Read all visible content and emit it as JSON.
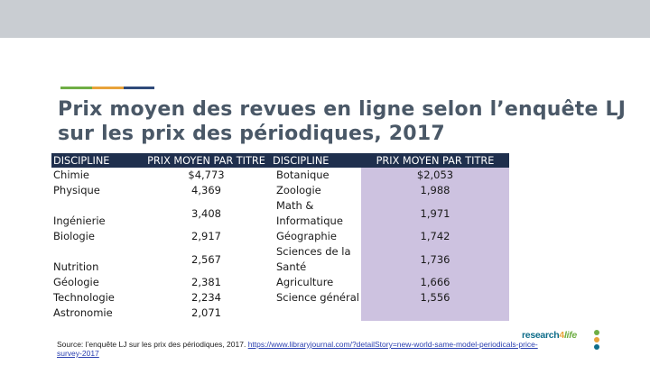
{
  "slide": {
    "title": "Prix moyen des revues en ligne selon l’enquête LJ sur les prix des périodiques, 2017",
    "colors": {
      "header_bg": "#1f2f4d",
      "highlight_col": "#cdc2e0",
      "title": "#4a5867"
    }
  },
  "table": {
    "headers": [
      "DISCIPLINE",
      "PRIX MOYEN PAR TITRE",
      "DISCIPLINE",
      "PRIX MOYEN PAR TITRE"
    ],
    "rows": [
      [
        "Chimie",
        "$4,773",
        "Botanique",
        "$2,053"
      ],
      [
        "Physique",
        "4,369",
        "Zoologie",
        "1,988"
      ],
      [
        "Ingénierie",
        "3,408",
        "Math & Informatique",
        "1,971"
      ],
      [
        "Biologie",
        "2,917",
        "Géographie",
        "1,742"
      ],
      [
        "Nutrition",
        "2,567",
        "Sciences de la Santé",
        "1,736"
      ],
      [
        "Géologie",
        "2,381",
        "Agriculture",
        "1,666"
      ],
      [
        "Technologie",
        "2,234",
        "Science général",
        "1,556"
      ],
      [
        "Astronomie",
        "2,071",
        "",
        ""
      ]
    ]
  },
  "source": {
    "prefix": "Source: l’enquête LJ sur les prix des périodiques, 2017. ",
    "link": "https://www.libraryjournal.com/?detailStory=new-world-same-model-periodicals-price-survey-2017"
  },
  "logo": {
    "part1": "research",
    "part2": "4",
    "part3": "life"
  }
}
